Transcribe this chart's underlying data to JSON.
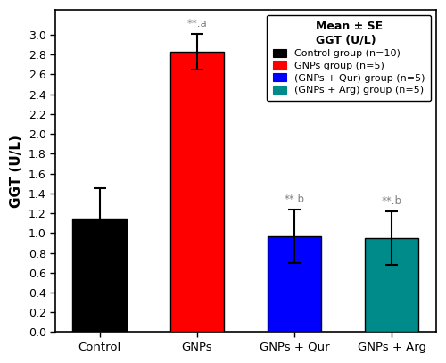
{
  "categories": [
    "Control",
    "GNPs",
    "GNPs + Qur",
    "GNPs + Arg"
  ],
  "means": [
    1.15,
    2.83,
    0.97,
    0.95
  ],
  "errors": [
    0.3,
    0.18,
    0.27,
    0.27
  ],
  "bar_colors": [
    "#000000",
    "#ff0000",
    "#0000ff",
    "#008B8B"
  ],
  "ylabel": "GGT (U/L)",
  "ylim": [
    0,
    3.25
  ],
  "yticks": [
    0.0,
    0.2,
    0.4,
    0.6,
    0.8,
    1.0,
    1.2,
    1.4,
    1.6,
    1.8,
    2.0,
    2.2,
    2.4,
    2.6,
    2.8,
    3.0
  ],
  "legend_title": "Mean ± SE\nGGT (U/L)",
  "legend_labels": [
    "Control group (n=10)",
    "GNPs group (n=5)",
    "(GNPs + Qur) group (n=5)",
    "(GNPs + Arg) group (n=5)"
  ],
  "legend_colors": [
    "#000000",
    "#ff0000",
    "#0000ff",
    "#008B8B"
  ],
  "annotations": [
    "",
    "**.a",
    "**.b",
    "**.b"
  ],
  "annotation_color": "#808080",
  "background_color": "#ffffff",
  "edge_color": "#000000"
}
